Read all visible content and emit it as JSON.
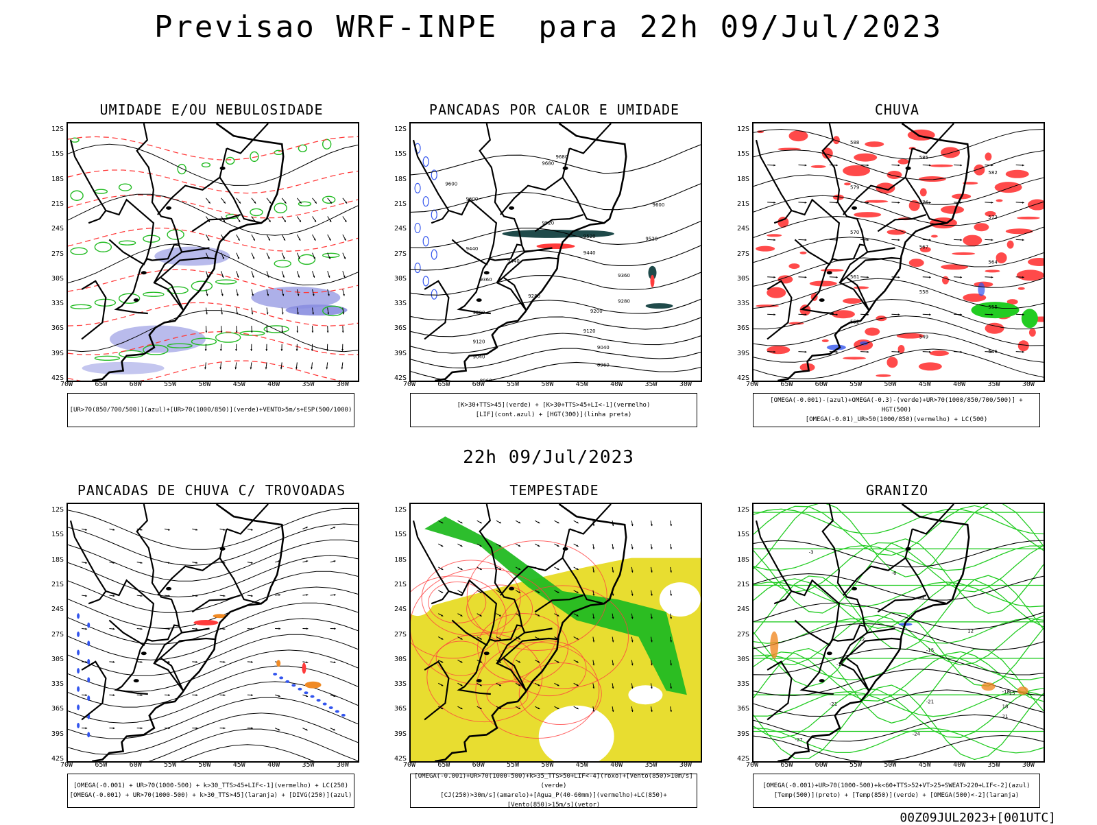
{
  "header": {
    "title": "Previsao WRF-INPE  para 22h 09/Jul/2023",
    "mid_date": "22h 09/Jul/2023",
    "run_id": "00Z09JUL2023+[001UTC]"
  },
  "axes": {
    "lat_labels": [
      "12S",
      "15S",
      "18S",
      "21S",
      "24S",
      "27S",
      "30S",
      "33S",
      "36S",
      "39S",
      "42S"
    ],
    "lon_labels": [
      "70W",
      "65W",
      "60W",
      "55W",
      "50W",
      "45W",
      "40W",
      "35W",
      "30W"
    ]
  },
  "panels": [
    {
      "title": "UMIDADE E/OU NEBULOSIDADE",
      "legend": [
        "[UR>70(850/700/500)](azul)+[UR>70(1000/850)](verde)+VENTO>5m/s+ESP(500/1000)"
      ]
    },
    {
      "title": "PANCADAS POR CALOR E UMIDADE",
      "legend": [
        "[K>30+TTS>45](verde) + [K>30+TTS>45+LI<-1](vermelho)",
        "[LIF](cont.azul) + [HGT(300)](linha preta)"
      ],
      "contour_labels": [
        "9680",
        "9680",
        "9600",
        "9600",
        "9600",
        "9520",
        "9520",
        "9520",
        "9440",
        "9440",
        "9440",
        "9360",
        "9360",
        "9280",
        "9280",
        "9200",
        "9200",
        "9120",
        "9120",
        "9040",
        "9040",
        "8960",
        "8960"
      ]
    },
    {
      "title": "CHUVA",
      "legend": [
        "[OMEGA(-0.001)-(azul)+OMEGA(-0.3)-(verde)+UR>70(1000/850/700/500)] + HGT(500)",
        "[OMEGA(-0.01)_UR>50(1000/850)(vermelho) + LC(500)"
      ],
      "contour_labels": [
        "588",
        "585",
        "582",
        "579",
        "576",
        "573",
        "570",
        "567",
        "564",
        "561",
        "558",
        "555",
        "552",
        "549",
        "546"
      ]
    },
    {
      "title": "PANCADAS DE CHUVA C/ TROVOADAS",
      "legend": [
        "[OMEGA(-0.001) + UR>70(1000-500) + k>30_TTS>45+LIF<-1](vermelho) + LC(250)",
        "[OMEGA(-0.001) + UR>70(1000-500) + k>30_TTS>45](laranja) + [DIVG(250)](azul)"
      ]
    },
    {
      "title": "TEMPESTADE",
      "legend": [
        "[OMEGA(-0.001)+UR>70(1000-500)+k>35_TTS>50+LIF<-4](roxo)+[Vento(850)>10m/s](verde)",
        "[CJ(250)>30m/s](amarelo)+[Agua_P(40-60mm)](vermelho)+LC(850)+[Vento(850)>15m/s](vetor)"
      ]
    },
    {
      "title": "GRANIZO",
      "legend": [
        "[OMEGA(-0.001)+UR>70(1000-500)+k<60+TTS>52+VT>25+SWEAT>220+LIF<-2](azul)",
        "[Temp(500)](preto) + [Temp(850)](verde) + [OMEGA(500)<-2](laranja)"
      ],
      "contour_labels": [
        "-3",
        "-6",
        "-9",
        "-12",
        "-15",
        "-15",
        "-18",
        "-21",
        "-21",
        "-24",
        "-27",
        "12",
        "15",
        "18",
        "21"
      ]
    }
  ],
  "colors": {
    "humidity_blue": "#8a8ee0",
    "humidity_green": "#22bb22",
    "red": "#ff3b3b",
    "dark_teal": "#1f4a4a",
    "lif_blue": "#3355ee",
    "yellow": "#e8dd30",
    "orange": "#f08a24",
    "green_bright": "#22cc22"
  }
}
